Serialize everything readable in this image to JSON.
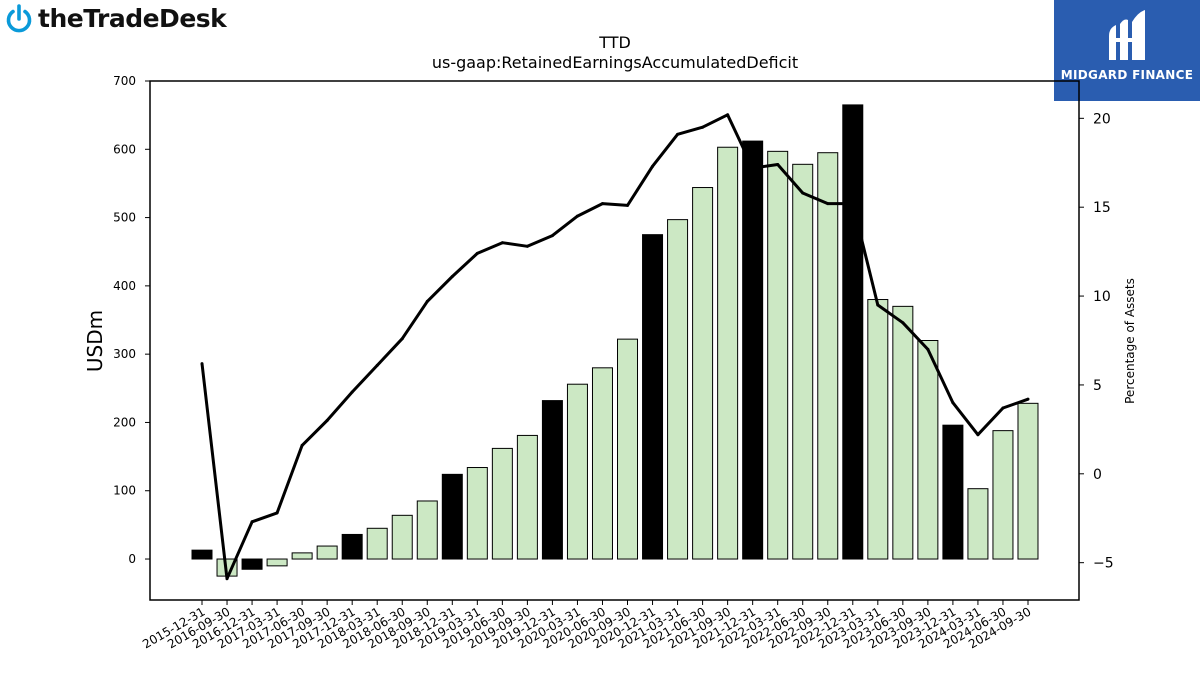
{
  "branding": {
    "left_logo": "theTradeDesk",
    "right_logo": "MIDGARD FINANCE",
    "left_color": "#0a9ad9",
    "right_color": "#2a5db0"
  },
  "chart_data": {
    "type": "bar",
    "title": "TTD",
    "subtitle": "us-gaap:RetainedEarningsAccumulatedDeficit",
    "ylabel": "USDm",
    "y2label": "Percentage of Assets",
    "ylim": [
      -60,
      700
    ],
    "y2lim": [
      -7.1,
      22.1
    ],
    "yticks": [
      0,
      100,
      200,
      300,
      400,
      500,
      600,
      700
    ],
    "y2ticks": [
      -5,
      0,
      5,
      10,
      15,
      20
    ],
    "grid": false,
    "categories": [
      "2015-12-31",
      "2016-09-30",
      "2016-12-31",
      "2017-03-31",
      "2017-06-30",
      "2017-09-30",
      "2017-12-31",
      "2018-03-31",
      "2018-06-30",
      "2018-09-30",
      "2018-12-31",
      "2019-03-31",
      "2019-06-30",
      "2019-09-30",
      "2019-12-31",
      "2020-03-31",
      "2020-06-30",
      "2020-09-30",
      "2020-12-31",
      "2021-03-31",
      "2021-06-30",
      "2021-09-30",
      "2021-12-31",
      "2022-03-31",
      "2022-06-30",
      "2022-09-30",
      "2022-12-31",
      "2023-03-31",
      "2023-06-30",
      "2023-09-30",
      "2023-12-31",
      "2024-03-31",
      "2024-06-30",
      "2024-09-30"
    ],
    "series": [
      {
        "type": "bar",
        "values": [
          13,
          -25,
          -15,
          -10,
          9,
          19,
          36,
          45,
          64,
          85,
          124,
          134,
          162,
          181,
          232,
          256,
          280,
          322,
          475,
          497,
          544,
          603,
          612,
          597,
          578,
          595,
          665,
          380,
          370,
          320,
          196,
          103,
          188,
          228
        ],
        "highlight": [
          true,
          false,
          true,
          false,
          false,
          false,
          true,
          false,
          false,
          false,
          true,
          false,
          false,
          false,
          true,
          false,
          false,
          false,
          true,
          false,
          false,
          false,
          true,
          false,
          false,
          false,
          true,
          false,
          false,
          false,
          true,
          false,
          false,
          false
        ],
        "fill_color": "#cce8c4",
        "highlight_color": "#000000"
      },
      {
        "type": "line",
        "axis": "right",
        "values": [
          6.2,
          -5.9,
          -2.7,
          -2.2,
          1.6,
          3.0,
          4.6,
          6.1,
          7.6,
          9.7,
          11.1,
          12.4,
          13.0,
          12.8,
          13.4,
          14.5,
          15.2,
          15.1,
          17.3,
          19.1,
          19.5,
          20.2,
          17.2,
          17.4,
          15.8,
          15.2,
          15.2,
          9.5,
          8.5,
          7.0,
          4.0,
          2.2,
          3.7,
          4.2
        ],
        "color": "#000000"
      }
    ]
  }
}
